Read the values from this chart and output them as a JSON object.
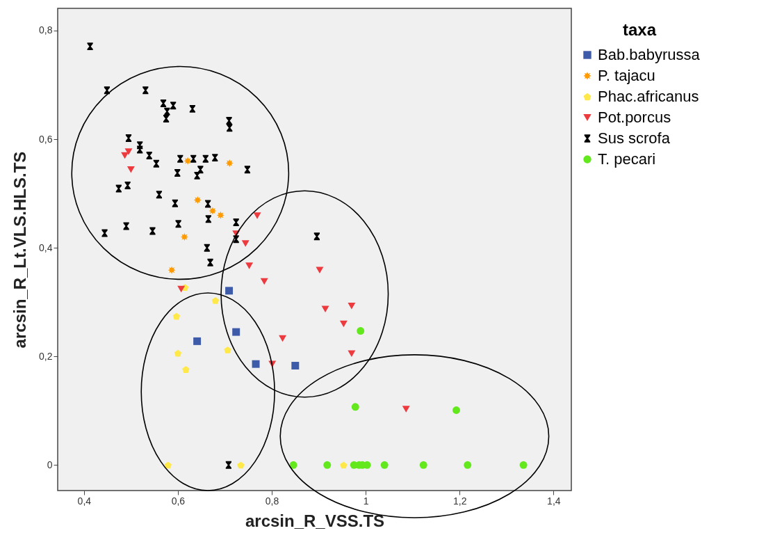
{
  "chart_data": {
    "type": "scatter",
    "xlabel": "arcsin_R_VSS.TS",
    "ylabel": "arcsin_R_Lt.VLS.HLS.TS",
    "legend_title": "taxa",
    "legend": "right",
    "grid": false,
    "xlim": [
      0.344,
      1.438
    ],
    "ylim": [
      -0.047,
      0.841
    ],
    "xticks": [
      {
        "value": 0.4,
        "label": "0,4"
      },
      {
        "value": 0.6,
        "label": "0,6"
      },
      {
        "value": 0.8,
        "label": "0,8"
      },
      {
        "value": 1,
        "label": "1"
      },
      {
        "value": 1.2,
        "label": "1,2"
      },
      {
        "value": 1.4,
        "label": "1,4"
      }
    ],
    "yticks": [
      0,
      {
        "value": 0.2,
        "label": "0,2"
      },
      {
        "value": 0.4,
        "label": "0,4"
      },
      {
        "value": 0.6,
        "label": "0,6"
      },
      {
        "value": 0.8,
        "label": "0,8"
      }
    ],
    "series": [
      {
        "name": "Bab.babyrussa",
        "color": "#3e5ba9",
        "marker": "square",
        "x": [
          0.709,
          0.724,
          0.641,
          0.766,
          0.85
        ],
        "values": [
          0.321,
          0.245,
          0.228,
          0.186,
          0.183
        ]
      },
      {
        "name": "P. tajacu",
        "color": "#ff9a00",
        "marker": "star",
        "x": [
          0.621,
          0.71,
          0.642,
          0.674,
          0.691,
          0.614,
          0.587
        ],
        "values": [
          0.56,
          0.556,
          0.488,
          0.468,
          0.46,
          0.42,
          0.359
        ]
      },
      {
        "name": "Phac.africanus",
        "color": "#ffe94a",
        "x": [
          0.615,
          0.68,
          0.597,
          0.6,
          0.706,
          0.617,
          0.579,
          0.734,
          0.953
        ],
        "values": [
          0.327,
          0.303,
          0.274,
          0.206,
          0.212,
          0.176,
          0,
          0,
          0
        ]
      },
      {
        "name": "Pot.porcus",
        "color": "#ec3a3f",
        "marker": "triangle-down",
        "x": [
          0.495,
          0.487,
          0.5,
          0.769,
          0.724,
          0.744,
          0.752,
          0.784,
          0.902,
          0.607,
          0.823,
          0.801,
          0.914,
          0.97,
          0.953,
          0.97,
          1.086
        ],
        "values": [
          0.577,
          0.57,
          0.544,
          0.459,
          0.426,
          0.408,
          0.367,
          0.338,
          0.359,
          0.324,
          0.233,
          0.186,
          0.287,
          0.293,
          0.26,
          0.205,
          0.103
        ]
      },
      {
        "name": "Sus scrofa",
        "color": "#000000",
        "x": [
          0.413,
          0.449,
          0.531,
          0.569,
          0.59,
          0.577,
          0.575,
          0.631,
          0.709,
          0.71,
          0.495,
          0.519,
          0.519,
          0.539,
          0.554,
          0.605,
          0.633,
          0.659,
          0.648,
          0.679,
          0.748,
          0.599,
          0.641,
          0.56,
          0.594,
          0.664,
          0.665,
          0.601,
          0.546,
          0.724,
          0.724,
          0.662,
          0.669,
          0.896,
          0.474,
          0.493,
          0.444,
          0.49,
          0.708
        ],
        "values": [
          0.771,
          0.69,
          0.69,
          0.666,
          0.662,
          0.651,
          0.638,
          0.656,
          0.634,
          0.621,
          0.602,
          0.589,
          0.581,
          0.57,
          0.555,
          0.564,
          0.564,
          0.564,
          0.544,
          0.566,
          0.544,
          0.538,
          0.533,
          0.498,
          0.482,
          0.481,
          0.453,
          0.444,
          0.431,
          0.447,
          0.416,
          0.4,
          0.373,
          0.421,
          0.509,
          0.515,
          0.427,
          0.44,
          0
        ]
      },
      {
        "name": "T. pecari",
        "color": "#62e81c",
        "marker": "circle",
        "x": [
          0.989,
          0.978,
          1.193,
          0.846,
          0.918,
          0.975,
          0.986,
          0.993,
          1.003,
          1.04,
          1.123,
          1.217,
          1.336
        ],
        "values": [
          0.247,
          0.107,
          0.101,
          0,
          0,
          0,
          0,
          0,
          0,
          0,
          0,
          0,
          0
        ]
      }
    ]
  }
}
